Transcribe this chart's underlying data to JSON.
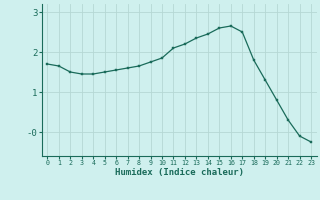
{
  "x": [
    0,
    1,
    2,
    3,
    4,
    5,
    6,
    7,
    8,
    9,
    10,
    11,
    12,
    13,
    14,
    15,
    16,
    17,
    18,
    19,
    20,
    21,
    22,
    23
  ],
  "y": [
    1.7,
    1.65,
    1.5,
    1.45,
    1.45,
    1.5,
    1.55,
    1.6,
    1.65,
    1.75,
    1.85,
    2.1,
    2.2,
    2.35,
    2.45,
    2.6,
    2.65,
    2.5,
    1.8,
    1.3,
    0.8,
    0.3,
    -0.1,
    -0.25
  ],
  "bg_color": "#cff0ee",
  "line_color": "#1a6b5a",
  "marker_color": "#1a6b5a",
  "grid_color_major": "#b5d8d4",
  "xlabel": "Humidex (Indice chaleur)",
  "ylim": [
    -0.6,
    3.2
  ],
  "xlim": [
    -0.5,
    23.5
  ],
  "tick_color": "#1a6b5a"
}
